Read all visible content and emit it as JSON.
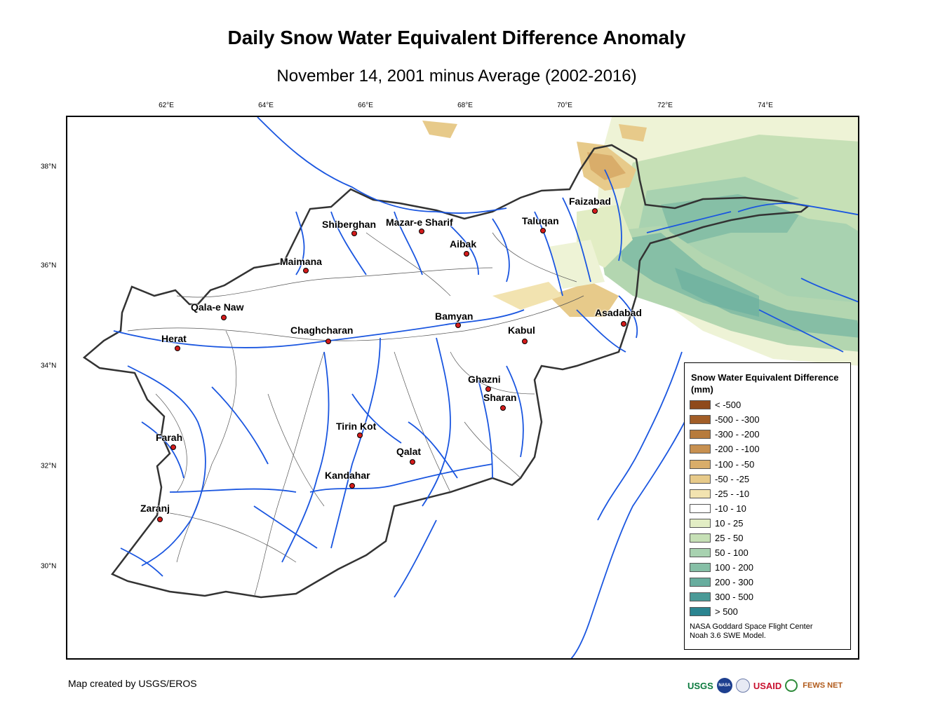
{
  "title": "Daily Snow Water Equivalent Difference Anomaly",
  "subtitle": "November 14, 2001 minus Average (2002-2016)",
  "longitude_labels": [
    "62°E",
    "64°E",
    "66°E",
    "68°E",
    "70°E",
    "72°E",
    "74°E"
  ],
  "latitude_labels": [
    "38°N",
    "36°N",
    "34°N",
    "32°N",
    "30°N"
  ],
  "cities": [
    {
      "name": "Faizabad"
    },
    {
      "name": "Shiberghan"
    },
    {
      "name": "Mazar-e Sharif"
    },
    {
      "name": "Taluqan"
    },
    {
      "name": "Aibak"
    },
    {
      "name": "Maimana"
    },
    {
      "name": "Qala-e Naw"
    },
    {
      "name": "Asadabad"
    },
    {
      "name": "Bamyan"
    },
    {
      "name": "Chaghcharan"
    },
    {
      "name": "Herat"
    },
    {
      "name": "Kabul"
    },
    {
      "name": "Ghazni"
    },
    {
      "name": "Sharan"
    },
    {
      "name": "Tirin Kot"
    },
    {
      "name": "Farah"
    },
    {
      "name": "Qalat"
    },
    {
      "name": "Kandahar"
    },
    {
      "name": "Zaranj"
    }
  ],
  "legend": {
    "title": "Snow Water Equivalent Difference (mm)",
    "items": [
      {
        "label": "< -500",
        "color": "#8f4a1b"
      },
      {
        "label": "-500 - -300",
        "color": "#a15d27"
      },
      {
        "label": "-300 - -200",
        "color": "#b77b3c"
      },
      {
        "label": "-200 - -100",
        "color": "#c79050"
      },
      {
        "label": "-100 - -50",
        "color": "#d9ad6a"
      },
      {
        "label": "-50 - -25",
        "color": "#e7ca8a"
      },
      {
        "label": "-25 - -10",
        "color": "#f2e3b0"
      },
      {
        "label": "-10 - 10",
        "color": "#ffffff"
      },
      {
        "label": "10 - 25",
        "color": "#e2edc4"
      },
      {
        "label": "25 - 50",
        "color": "#c6e0b6"
      },
      {
        "label": "50 - 100",
        "color": "#a8d2b0"
      },
      {
        "label": "100 - 200",
        "color": "#86bfa6"
      },
      {
        "label": "200 - 300",
        "color": "#68ad9e"
      },
      {
        "label": "300 - 500",
        "color": "#4a9a97"
      },
      {
        "label": "> 500",
        "color": "#2b8490"
      }
    ],
    "credit_line1": "NASA Goddard Space Flight Center",
    "credit_line2": "Noah 3.6 SWE Model."
  },
  "footer": "Map created by USGS/EROS",
  "logos": {
    "usgs": "USGS",
    "usaid": "USAID",
    "fews": "FEWS NET"
  },
  "colors": {
    "river": "#1a56e0",
    "city_marker": "#d41b1b",
    "border": "#333333"
  }
}
